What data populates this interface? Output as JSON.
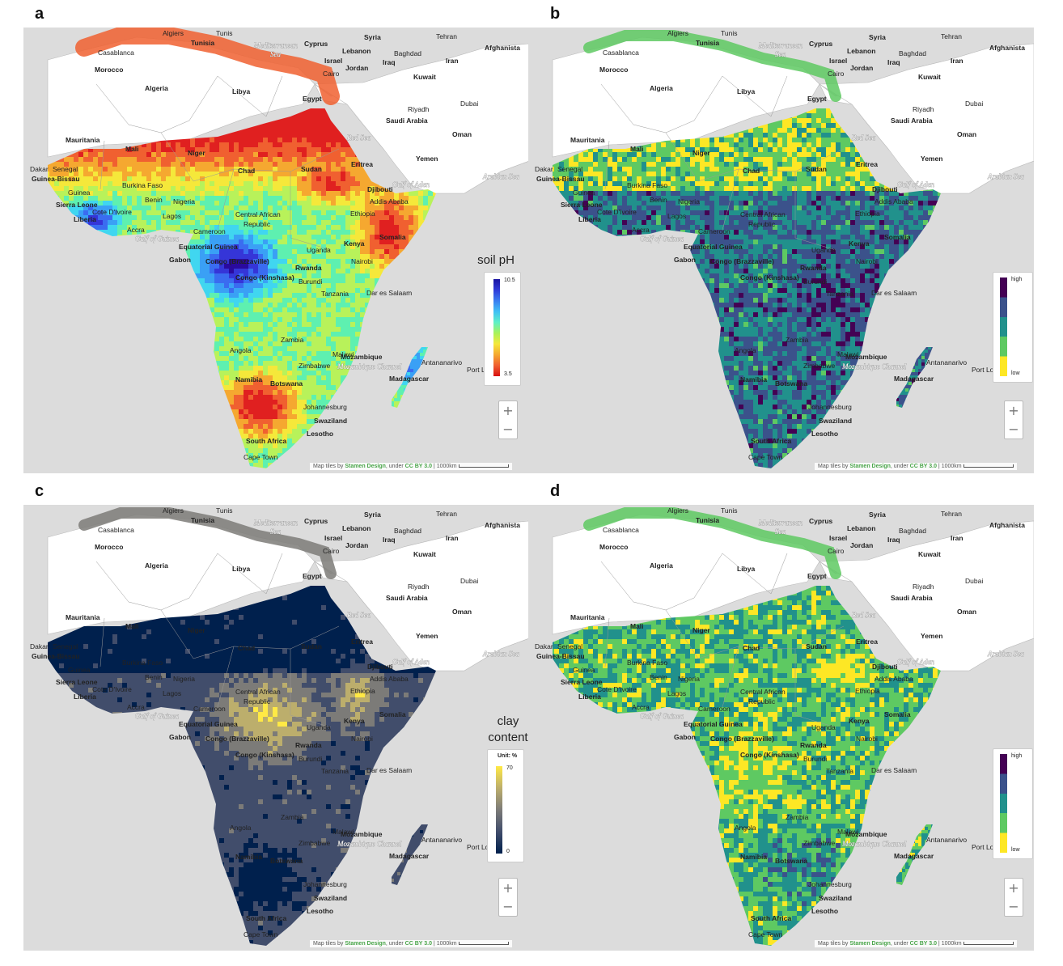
{
  "panels": [
    {
      "letter": "a",
      "legend_title": "soil pH",
      "legend_unit": "",
      "legend_max": "10.5",
      "legend_min": "3.5"
    },
    {
      "letter": "b",
      "legend_title": "",
      "legend_unit": "",
      "legend_max": "high",
      "legend_min": "low"
    },
    {
      "letter": "c",
      "legend_title": "clay content",
      "legend_unit": "Unit: %",
      "legend_max": "70",
      "legend_min": "0"
    },
    {
      "letter": "d",
      "legend_title": "",
      "legend_unit": "",
      "legend_max": "high",
      "legend_min": "low"
    }
  ],
  "map_labels": {
    "algiers": "Algiers",
    "tunis": "Tunis",
    "tunisia": "Tunisia",
    "casablanca": "Casablanca",
    "morocco": "Morocco",
    "algeria": "Algeria",
    "libya": "Libya",
    "egypt": "Egypt",
    "cairo": "Cairo",
    "mediterranean": "Mediterranean",
    "sea": "Sea",
    "cyprus": "Cyprus",
    "syria": "Syria",
    "lebanon": "Lebanon",
    "israel": "Israel",
    "jordan": "Jordan",
    "iraq": "Iraq",
    "baghdad": "Baghdad",
    "iran": "Iran",
    "tehran": "Tehran",
    "kuwait": "Kuwait",
    "afghanistan": "Afghanista",
    "riyadh": "Riyadh",
    "saudi": "Saudi Arabia",
    "dubai": "Dubai",
    "oman": "Oman",
    "red_sea": "Red Sea",
    "yemen": "Yemen",
    "arabian_sea": "Arabian Sea",
    "gulf_aden": "Gulf of Aden",
    "mauritania": "Mauritania",
    "mali": "Mali",
    "niger": "Niger",
    "chad": "Chad",
    "sudan": "Sudan",
    "eritrea": "Eritrea",
    "djibouti": "Djibouti",
    "addis": "Addis Ababa",
    "ethiopia": "Ethiopia",
    "somalia": "Somalia",
    "dakar": "Dakar",
    "senegal": "Senegal",
    "guinea_bissau": "Guinea-Bissau",
    "guinea": "Guinea",
    "sierra": "Sierra Leone",
    "liberia": "Liberia",
    "cote": "Cote D'Ivoire",
    "burkina": "Burkina Faso",
    "benin": "Benin",
    "nigeria": "Nigeria",
    "lagos": "Lagos",
    "accra": "Accra",
    "gulf_guinea": "Gulf of Guinea",
    "cameroon": "Cameroon",
    "car": "Central African",
    "republic": "Republic",
    "eq_guinea": "Equatorial Guinea",
    "gabon": "Gabon",
    "congo_b": "Congo (Brazzaville)",
    "congo_k": "Congo (Kinshasa)",
    "uganda": "Uganda",
    "kenya": "Kenya",
    "nairobi": "Nairobi",
    "rwanda": "Rwanda",
    "burundi": "Burundi",
    "tanzania": "Tanzania",
    "dar": "Dar es Salaam",
    "angola": "Angola",
    "zambia": "Zambia",
    "malawi": "Malawi",
    "mozambique": "Mozambique",
    "zimbabwe": "Zimbabwe",
    "moz_channel": "Mozambique Channel",
    "antananarivo": "Antananarivo",
    "madagascar": "Madagascar",
    "port_louis": "Port Louis",
    "namibia": "Namibia",
    "botswana": "Botswana",
    "johannesburg": "Johannesburg",
    "swaziland": "Swaziland",
    "lesotho": "Lesotho",
    "south_africa": "South Africa",
    "cape_town": "Cape Town"
  },
  "attribution": {
    "prefix": "Map tiles by",
    "stamen": "Stamen Design",
    "mid": ", under",
    "license": "CC BY 3.0",
    "scale": "1000km"
  },
  "zoom": {
    "plus": "+",
    "minus": "−"
  },
  "colors": {
    "ph": [
      "#2a0a9e",
      "#3535d8",
      "#3a6cf0",
      "#3aa0f5",
      "#40d6f0",
      "#5ef0b0",
      "#b8f25a",
      "#f5e83a",
      "#f5a830",
      "#f06030",
      "#e02020"
    ],
    "viridis": [
      "#440154",
      "#3b528b",
      "#21918c",
      "#5ec962",
      "#fde725"
    ],
    "cividis": [
      "#00204d",
      "#414d6b",
      "#7c7b78",
      "#bcae6c",
      "#ffe945"
    ]
  }
}
